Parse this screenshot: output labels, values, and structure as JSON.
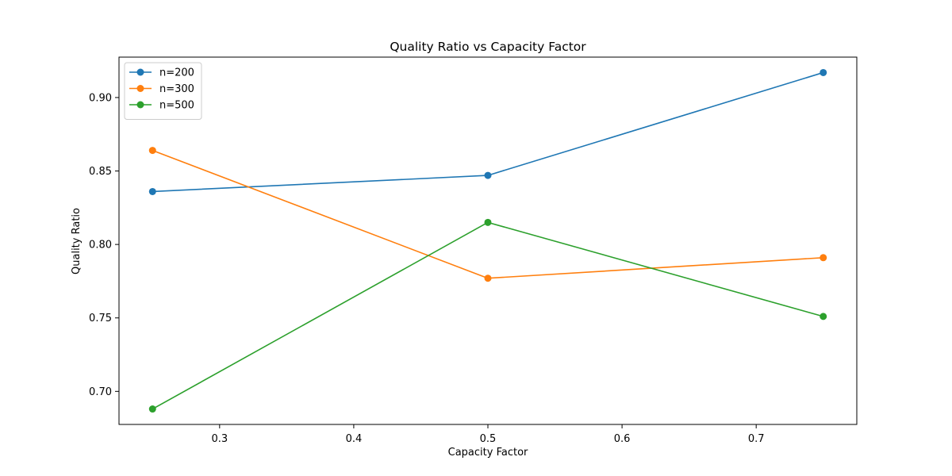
{
  "chart_data": {
    "type": "line",
    "title": "Quality Ratio vs Capacity Factor",
    "xlabel": "Capacity Factor",
    "ylabel": "Quality Ratio",
    "x": [
      0.25,
      0.5,
      0.75
    ],
    "xlim": [
      0.225,
      0.775
    ],
    "ylim": [
      0.6775,
      0.9275
    ],
    "xticks": [
      0.3,
      0.4,
      0.5,
      0.6,
      0.7
    ],
    "xtick_labels": [
      "0.3",
      "0.4",
      "0.5",
      "0.6",
      "0.7"
    ],
    "yticks": [
      0.7,
      0.75,
      0.8,
      0.85,
      0.9
    ],
    "ytick_labels": [
      "0.70",
      "0.75",
      "0.80",
      "0.85",
      "0.90"
    ],
    "grid": false,
    "legend_position": "top-left",
    "series": [
      {
        "name": "n=200",
        "color": "#1f77b4",
        "values": [
          0.836,
          0.847,
          0.917
        ]
      },
      {
        "name": "n=300",
        "color": "#ff7f0e",
        "values": [
          0.864,
          0.777,
          0.791
        ]
      },
      {
        "name": "n=500",
        "color": "#2ca02c",
        "values": [
          0.688,
          0.815,
          0.751
        ]
      }
    ]
  }
}
